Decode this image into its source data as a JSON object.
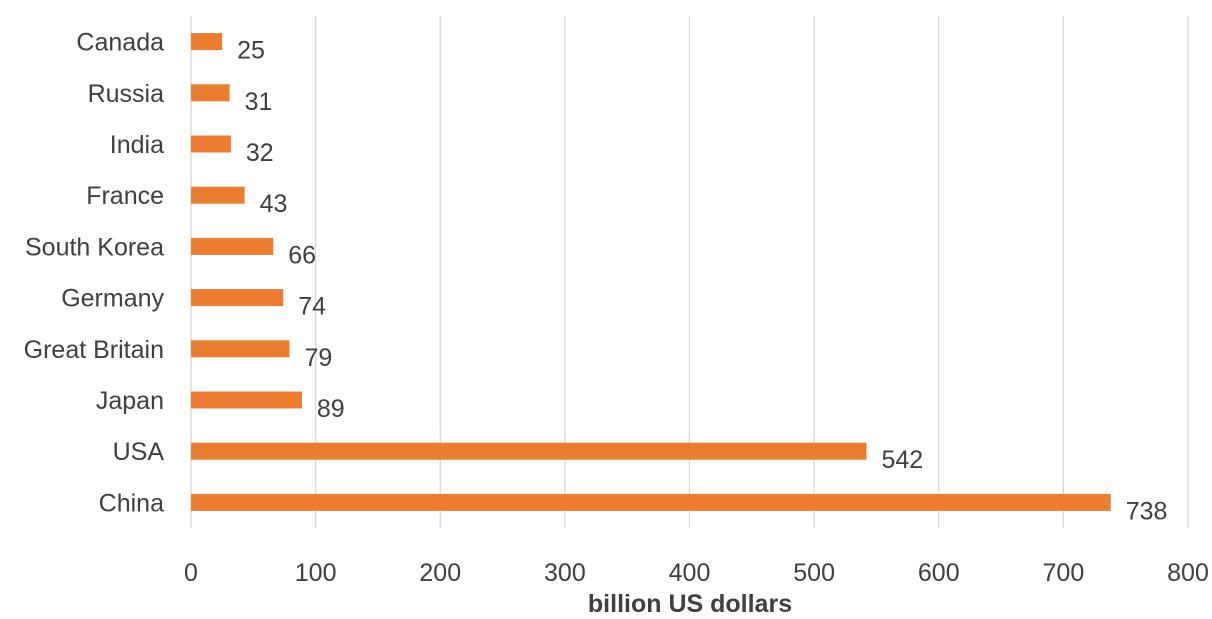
{
  "chart_data": {
    "type": "bar",
    "orientation": "horizontal",
    "categories": [
      "China",
      "USA",
      "Japan",
      "Great Britain",
      "Germany",
      "South Korea",
      "France",
      "India",
      "Russia",
      "Canada"
    ],
    "values": [
      738,
      542,
      89,
      79,
      74,
      66,
      43,
      32,
      31,
      25
    ],
    "data_labels": [
      "738",
      "542",
      "89",
      "79",
      "74",
      "66",
      "43",
      "32",
      "31",
      "25"
    ],
    "xlabel": "billion US dollars",
    "ylabel": "",
    "xlim": [
      0,
      800
    ],
    "x_ticks": [
      "0",
      "100",
      "200",
      "300",
      "400",
      "500",
      "600",
      "700",
      "800"
    ],
    "grid": "vertical",
    "legend": "none",
    "colors": {
      "bar": "#ed7d31",
      "grid": "#d9d9d9",
      "text": "#404040"
    }
  }
}
